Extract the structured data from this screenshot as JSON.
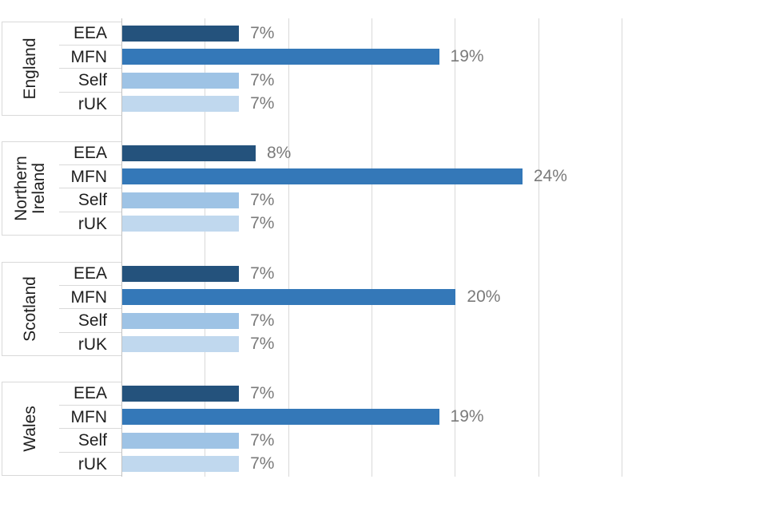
{
  "colors": {
    "eea": "#24527C",
    "mfn": "#3478B8",
    "self": "#9EC3E5",
    "ruk": "#C0D8EE",
    "gridline": "#D9D9D9",
    "axis": "#C2C2C2",
    "value_label": "#7A7A7A",
    "category_label": "#1F1F1F"
  },
  "chart_data": {
    "type": "bar",
    "orientation": "horizontal",
    "title": "",
    "xlabel": "",
    "ylabel": "",
    "unit": "%",
    "x_axis": {
      "min": 0,
      "max": 30,
      "gridlines_pct": [
        5,
        10,
        15,
        20,
        25,
        30
      ],
      "tick_labels_visible": false
    },
    "grid": "vertical-only",
    "legend": "none",
    "categories_per_group": [
      "EEA",
      "MFN",
      "Self",
      "rUK"
    ],
    "groups": [
      {
        "label": "England",
        "bars": [
          {
            "category": "EEA",
            "value": 7,
            "value_label": "7%"
          },
          {
            "category": "MFN",
            "value": 19,
            "value_label": "19%"
          },
          {
            "category": "Self",
            "value": 7,
            "value_label": "7%"
          },
          {
            "category": "rUK",
            "value": 7,
            "value_label": "7%"
          }
        ]
      },
      {
        "label": "Northern Ireland",
        "bars": [
          {
            "category": "EEA",
            "value": 8,
            "value_label": "8%"
          },
          {
            "category": "MFN",
            "value": 24,
            "value_label": "24%"
          },
          {
            "category": "Self",
            "value": 7,
            "value_label": "7%"
          },
          {
            "category": "rUK",
            "value": 7,
            "value_label": "7%"
          }
        ]
      },
      {
        "label": "Scotland",
        "bars": [
          {
            "category": "EEA",
            "value": 7,
            "value_label": "7%"
          },
          {
            "category": "MFN",
            "value": 20,
            "value_label": "20%"
          },
          {
            "category": "Self",
            "value": 7,
            "value_label": "7%"
          },
          {
            "category": "rUK",
            "value": 7,
            "value_label": "7%"
          }
        ]
      },
      {
        "label": "Wales",
        "bars": [
          {
            "category": "EEA",
            "value": 7,
            "value_label": "7%"
          },
          {
            "category": "MFN",
            "value": 19,
            "value_label": "19%"
          },
          {
            "category": "Self",
            "value": 7,
            "value_label": "7%"
          },
          {
            "category": "rUK",
            "value": 7,
            "value_label": "7%"
          }
        ]
      }
    ]
  }
}
